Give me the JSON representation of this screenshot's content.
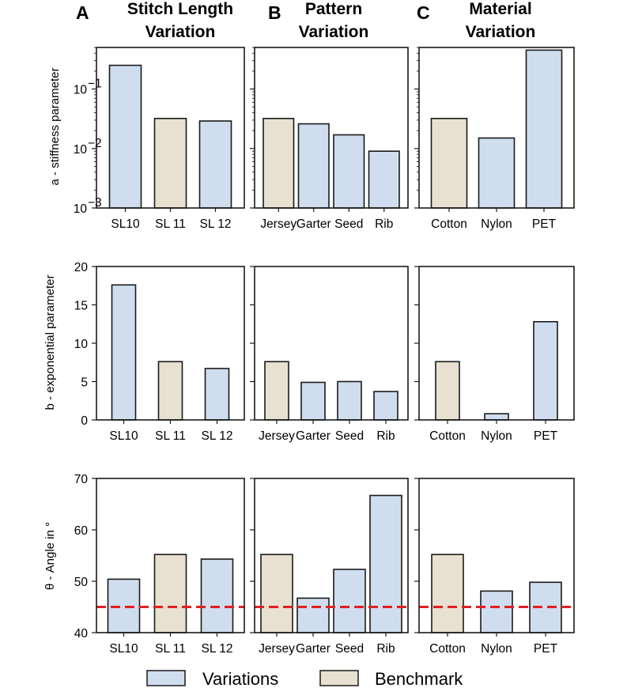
{
  "colors": {
    "variation": "#d0ddef",
    "benchmark": "#e8e0d0",
    "edge": "#1a1a1a",
    "reference_line": "#e02020"
  },
  "columns": [
    {
      "letter": "A",
      "title_line1": "Stitch Length",
      "title_line2": "Variation"
    },
    {
      "letter": "B",
      "title_line1": "Pattern",
      "title_line2": "Variation"
    },
    {
      "letter": "C",
      "title_line1": "Material",
      "title_line2": "Variation"
    }
  ],
  "legend": {
    "variations": "Variations",
    "benchmark": "Benchmark"
  },
  "chart_data": [
    {
      "type": "bar",
      "row": "a",
      "ylabel": "a - stiffness parameter",
      "yscale": "log",
      "ylim": [
        0.001,
        0.5
      ],
      "yticks": [
        {
          "value": 0.001,
          "base": "10",
          "exp": "−3"
        },
        {
          "value": 0.01,
          "base": "10",
          "exp": "−2"
        },
        {
          "value": 0.1,
          "base": "10",
          "exp": "−1"
        }
      ],
      "panels": [
        {
          "categories": [
            "SL10",
            "SL 11",
            "SL 12"
          ],
          "values": [
            0.25,
            0.032,
            0.029
          ],
          "kind": [
            "variation",
            "benchmark",
            "variation"
          ]
        },
        {
          "categories": [
            "Jersey",
            "Garter",
            "Seed",
            "Rib"
          ],
          "values": [
            0.032,
            0.026,
            0.017,
            0.009
          ],
          "kind": [
            "benchmark",
            "variation",
            "variation",
            "variation"
          ]
        },
        {
          "categories": [
            "Cotton",
            "Nylon",
            "PET"
          ],
          "values": [
            0.032,
            0.015,
            0.45
          ],
          "kind": [
            "benchmark",
            "variation",
            "variation"
          ]
        }
      ]
    },
    {
      "type": "bar",
      "row": "b",
      "ylabel": "b - exponential parameter",
      "yscale": "linear",
      "ylim": [
        0,
        20
      ],
      "yticks": [
        {
          "value": 0,
          "label": "0"
        },
        {
          "value": 5,
          "label": "5"
        },
        {
          "value": 10,
          "label": "10"
        },
        {
          "value": 15,
          "label": "15"
        },
        {
          "value": 20,
          "label": "20"
        }
      ],
      "panels": [
        {
          "categories": [
            "SL10",
            "SL 11",
            "SL 12"
          ],
          "values": [
            17.6,
            7.6,
            6.7
          ],
          "kind": [
            "variation",
            "benchmark",
            "variation"
          ]
        },
        {
          "categories": [
            "Jersey",
            "Garter",
            "Seed",
            "Rib"
          ],
          "values": [
            7.6,
            4.9,
            5.0,
            3.7
          ],
          "kind": [
            "benchmark",
            "variation",
            "variation",
            "variation"
          ]
        },
        {
          "categories": [
            "Cotton",
            "Nylon",
            "PET"
          ],
          "values": [
            7.6,
            0.8,
            12.8
          ],
          "kind": [
            "benchmark",
            "variation",
            "variation"
          ]
        }
      ]
    },
    {
      "type": "bar",
      "row": "theta",
      "ylabel": "θ - Angle in °",
      "yscale": "linear",
      "ylim": [
        40,
        70
      ],
      "reference_line": 45,
      "yticks": [
        {
          "value": 40,
          "label": "40"
        },
        {
          "value": 50,
          "label": "50"
        },
        {
          "value": 60,
          "label": "60"
        },
        {
          "value": 70,
          "label": "70"
        }
      ],
      "panels": [
        {
          "categories": [
            "SL10",
            "SL 11",
            "SL 12"
          ],
          "values": [
            50.4,
            55.2,
            54.3
          ],
          "kind": [
            "variation",
            "benchmark",
            "variation"
          ]
        },
        {
          "categories": [
            "Jersey",
            "Garter",
            "Seed",
            "Rib"
          ],
          "values": [
            55.2,
            46.7,
            52.3,
            66.7
          ],
          "kind": [
            "benchmark",
            "variation",
            "variation",
            "variation"
          ]
        },
        {
          "categories": [
            "Cotton",
            "Nylon",
            "PET"
          ],
          "values": [
            55.2,
            48.1,
            49.8
          ],
          "kind": [
            "benchmark",
            "variation",
            "variation"
          ]
        }
      ]
    }
  ]
}
